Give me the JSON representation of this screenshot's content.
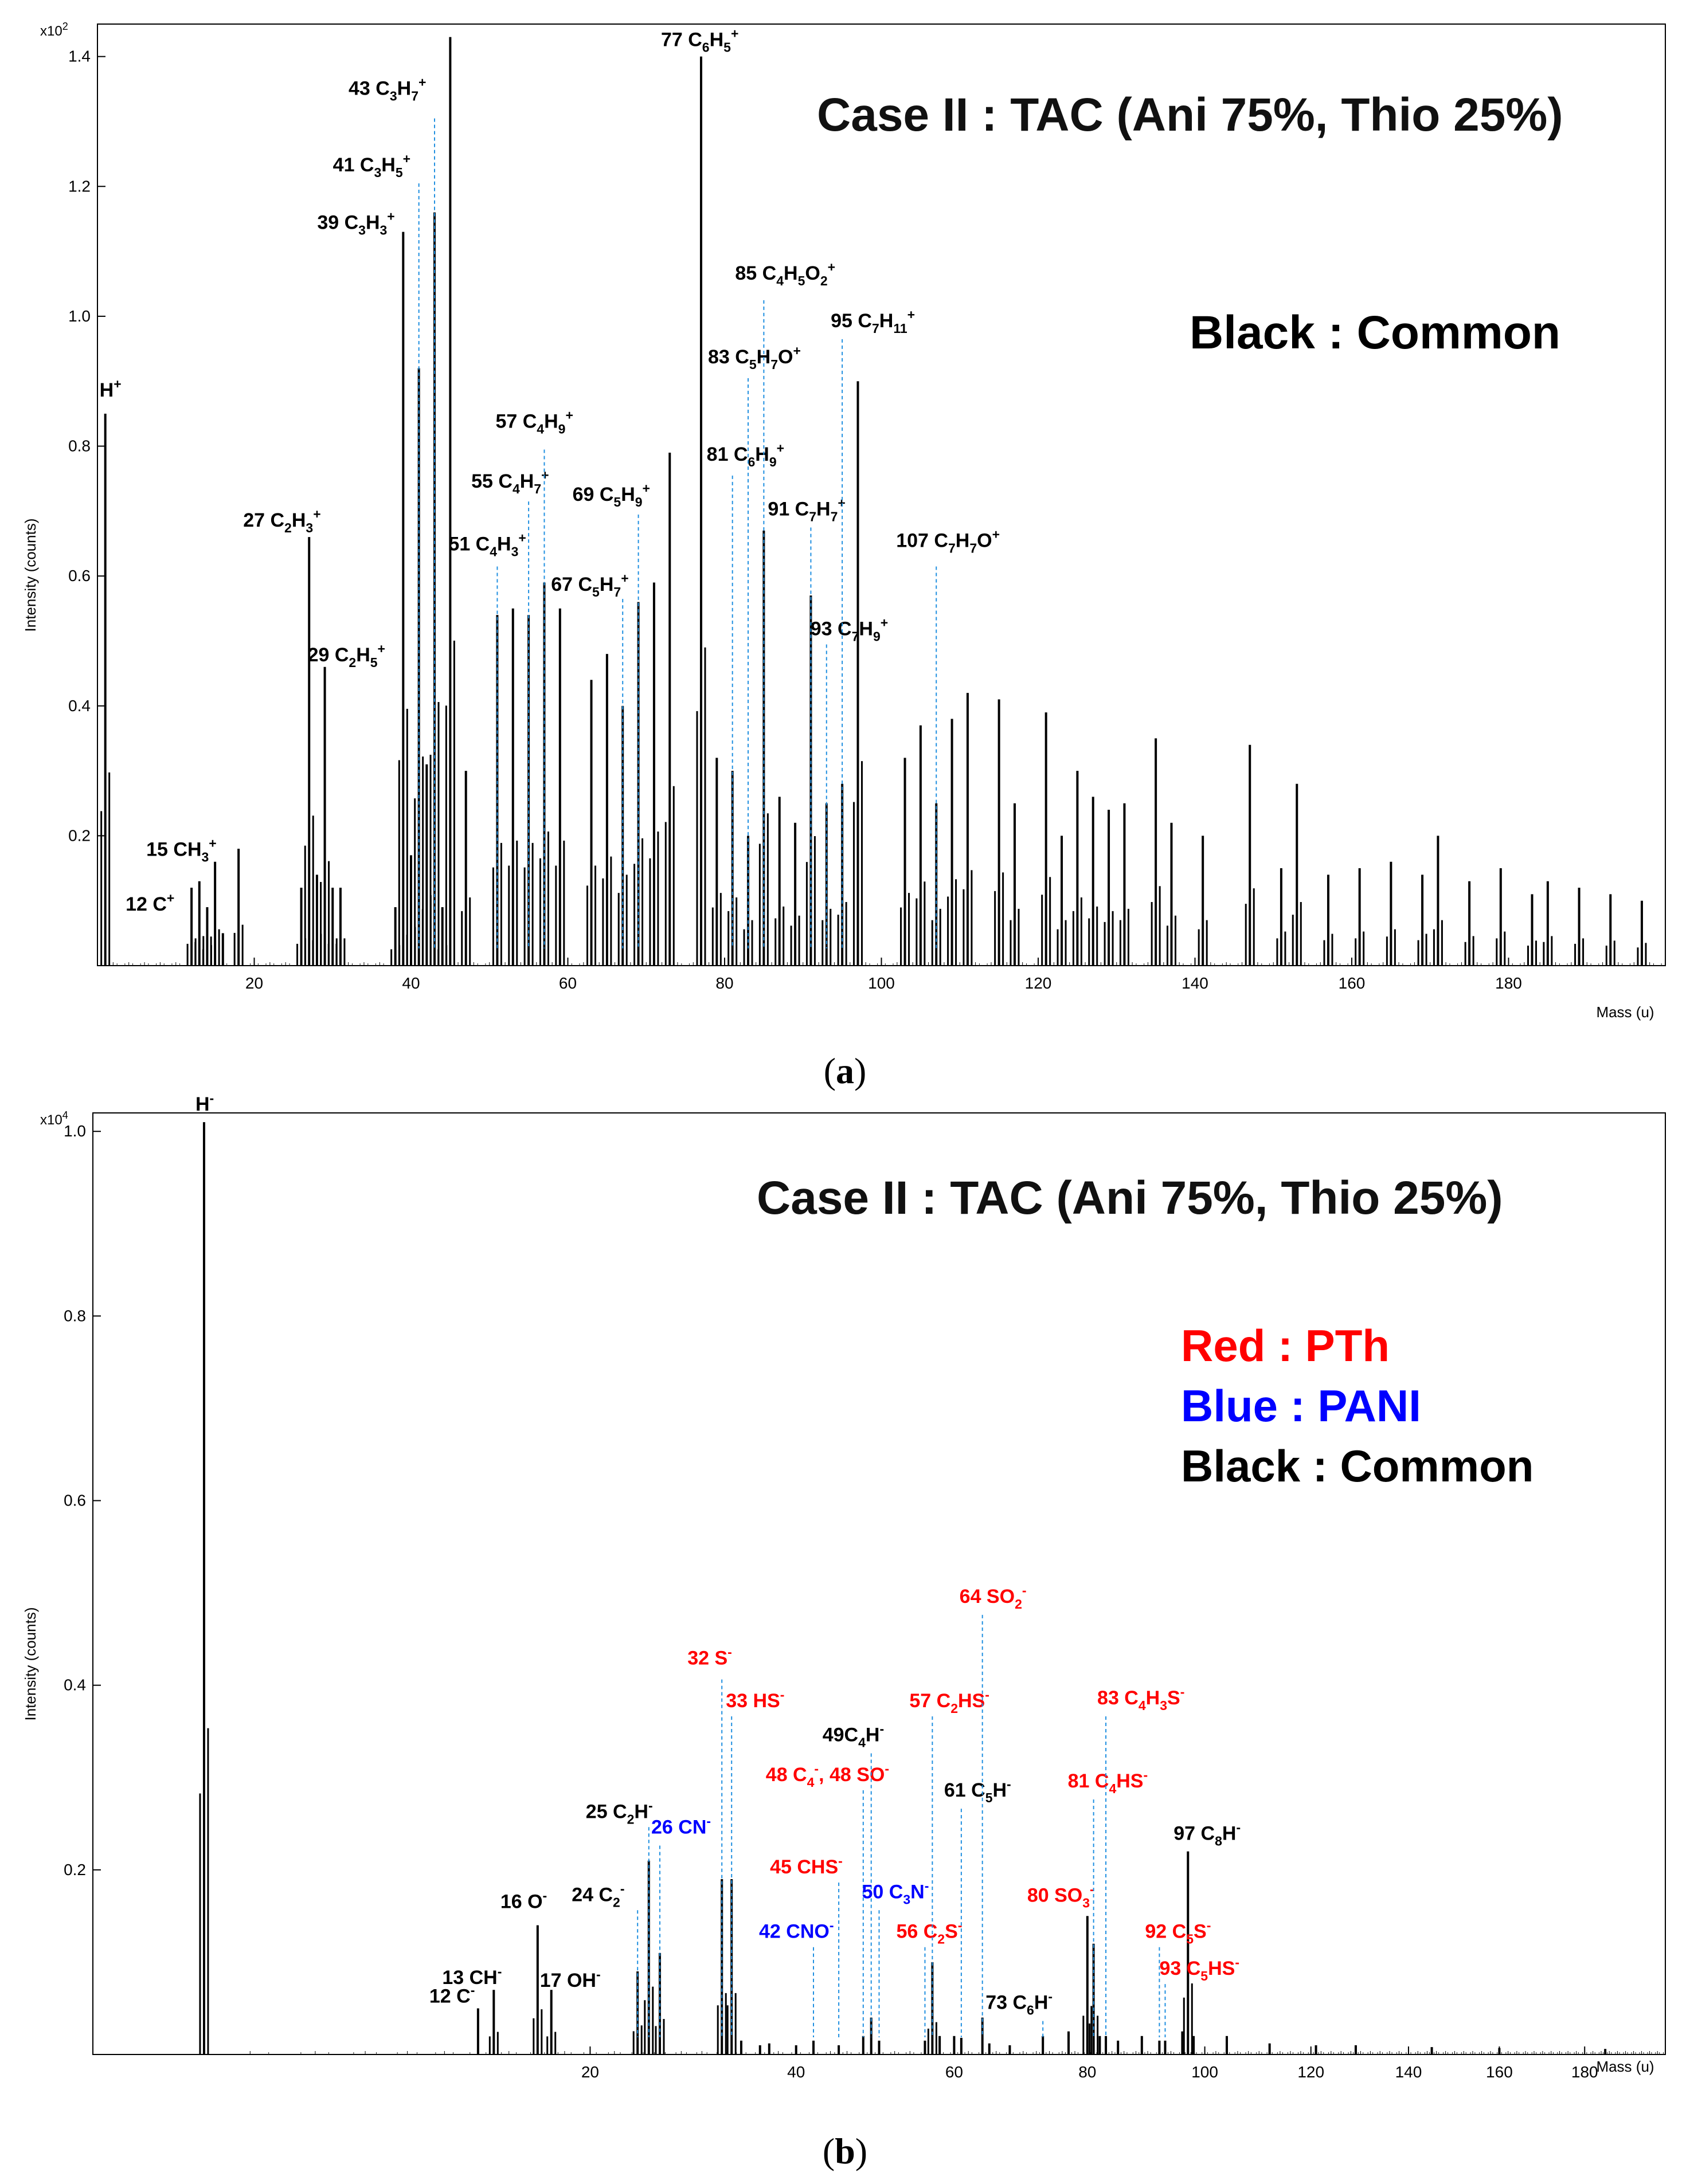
{
  "chart_data": [
    {
      "panel": "a",
      "type": "line",
      "title": "Case II : TAC (Ani 75%, Thio 25%)",
      "legend_groups": [
        {
          "label": "Black : Common",
          "color": "#000000"
        }
      ],
      "xlabel": "Mass (u)",
      "ylabel": "Intensity (counts)",
      "yscale_label": "x10",
      "yscale_exp": "2",
      "xlim": [
        0,
        200
      ],
      "ylim": [
        0,
        1.45
      ],
      "xticks": [
        "20",
        "40",
        "60",
        "80",
        "100",
        "120",
        "140",
        "160",
        "180"
      ],
      "yticks": [
        "0.2",
        "0.4",
        "0.6",
        "0.8",
        "1.0",
        "1.2",
        "1.4"
      ],
      "caption": "a",
      "peaks": [
        {
          "x": 1,
          "y": 0.85
        },
        {
          "x": 12,
          "y": 0.12
        },
        {
          "x": 13,
          "y": 0.13
        },
        {
          "x": 14,
          "y": 0.09
        },
        {
          "x": 15,
          "y": 0.16
        },
        {
          "x": 16,
          "y": 0.05
        },
        {
          "x": 18,
          "y": 0.18
        },
        {
          "x": 26,
          "y": 0.12
        },
        {
          "x": 27,
          "y": 0.66
        },
        {
          "x": 28,
          "y": 0.14
        },
        {
          "x": 29,
          "y": 0.46
        },
        {
          "x": 30,
          "y": 0.12
        },
        {
          "x": 31,
          "y": 0.12
        },
        {
          "x": 38,
          "y": 0.09
        },
        {
          "x": 39,
          "y": 1.13
        },
        {
          "x": 40,
          "y": 0.17
        },
        {
          "x": 41,
          "y": 0.92
        },
        {
          "x": 42,
          "y": 0.31
        },
        {
          "x": 43,
          "y": 1.16
        },
        {
          "x": 44,
          "y": 0.09
        },
        {
          "x": 45,
          "y": 1.43
        },
        {
          "x": 47,
          "y": 0.3
        },
        {
          "x": 51,
          "y": 0.54
        },
        {
          "x": 53,
          "y": 0.55
        },
        {
          "x": 55,
          "y": 0.54
        },
        {
          "x": 57,
          "y": 0.59
        },
        {
          "x": 59,
          "y": 0.55
        },
        {
          "x": 63,
          "y": 0.44
        },
        {
          "x": 65,
          "y": 0.48
        },
        {
          "x": 67,
          "y": 0.4
        },
        {
          "x": 69,
          "y": 0.56
        },
        {
          "x": 71,
          "y": 0.59
        },
        {
          "x": 73,
          "y": 0.79
        },
        {
          "x": 77,
          "y": 1.4
        },
        {
          "x": 79,
          "y": 0.32
        },
        {
          "x": 81,
          "y": 0.3
        },
        {
          "x": 83,
          "y": 0.2
        },
        {
          "x": 85,
          "y": 0.67
        },
        {
          "x": 87,
          "y": 0.26
        },
        {
          "x": 89,
          "y": 0.22
        },
        {
          "x": 91,
          "y": 0.57
        },
        {
          "x": 93,
          "y": 0.25
        },
        {
          "x": 95,
          "y": 0.28
        },
        {
          "x": 97,
          "y": 0.9
        },
        {
          "x": 103,
          "y": 0.32
        },
        {
          "x": 105,
          "y": 0.37
        },
        {
          "x": 107,
          "y": 0.25
        },
        {
          "x": 109,
          "y": 0.38
        },
        {
          "x": 111,
          "y": 0.42
        },
        {
          "x": 115,
          "y": 0.41
        },
        {
          "x": 117,
          "y": 0.25
        },
        {
          "x": 121,
          "y": 0.39
        },
        {
          "x": 123,
          "y": 0.2
        },
        {
          "x": 125,
          "y": 0.3
        },
        {
          "x": 127,
          "y": 0.26
        },
        {
          "x": 129,
          "y": 0.24
        },
        {
          "x": 131,
          "y": 0.25
        },
        {
          "x": 135,
          "y": 0.35
        },
        {
          "x": 137,
          "y": 0.22
        },
        {
          "x": 141,
          "y": 0.2
        },
        {
          "x": 147,
          "y": 0.34
        },
        {
          "x": 151,
          "y": 0.15
        },
        {
          "x": 153,
          "y": 0.28
        },
        {
          "x": 157,
          "y": 0.14
        },
        {
          "x": 161,
          "y": 0.15
        },
        {
          "x": 165,
          "y": 0.16
        },
        {
          "x": 169,
          "y": 0.14
        },
        {
          "x": 171,
          "y": 0.2
        },
        {
          "x": 175,
          "y": 0.13
        },
        {
          "x": 179,
          "y": 0.15
        },
        {
          "x": 183,
          "y": 0.11
        },
        {
          "x": 185,
          "y": 0.13
        },
        {
          "x": 189,
          "y": 0.12
        },
        {
          "x": 193,
          "y": 0.11
        },
        {
          "x": 197,
          "y": 0.1
        }
      ],
      "annotations": [
        {
          "x": 1,
          "y": 0.85,
          "label": "H",
          "sup": "+",
          "color": "#000000",
          "leader": false
        },
        {
          "x": 12,
          "y": 0.12,
          "label": "12 C",
          "sup": "+",
          "color": "#000000",
          "leader": false
        },
        {
          "x": 15,
          "y": 0.16,
          "label": "15 CH",
          "sub": "3",
          "sup": "+",
          "color": "#000000",
          "leader": false
        },
        {
          "x": 27,
          "y": 0.66,
          "label": "27 C",
          "sub": "2",
          "mid": "H",
          "sub2": "3",
          "sup": "+",
          "color": "#000000",
          "leader": false
        },
        {
          "x": 29,
          "y": 0.46,
          "label": "29 C",
          "sub": "2",
          "mid": "H",
          "sub2": "5",
          "sup": "+",
          "color": "#000000",
          "leader": false
        },
        {
          "x": 39,
          "y": 1.13,
          "label": "39 C",
          "sub": "3",
          "mid": "H",
          "sub2": "3",
          "sup": "+",
          "color": "#000000",
          "leader": false
        },
        {
          "x": 41,
          "y": 1.21,
          "label": "41 C",
          "sub": "3",
          "mid": "H",
          "sub2": "5",
          "sup": "+",
          "color": "#000000",
          "leader": true
        },
        {
          "x": 43,
          "y": 1.31,
          "label": "43 C",
          "sub": "3",
          "mid": "H",
          "sub2": "7",
          "sup": "+",
          "color": "#000000",
          "leader": true
        },
        {
          "x": 51,
          "y": 0.62,
          "label": "51 C",
          "sub": "4",
          "mid": "H",
          "sub2": "3",
          "sup": "+",
          "color": "#000000",
          "leader": true
        },
        {
          "x": 55,
          "y": 0.72,
          "label": "55 C",
          "sub": "4",
          "mid": "H",
          "sub2": "7",
          "sup": "+",
          "color": "#000000",
          "leader": true
        },
        {
          "x": 57,
          "y": 0.8,
          "label": "57 C",
          "sub": "4",
          "mid": "H",
          "sub2": "9",
          "sup": "+",
          "color": "#000000",
          "leader": true
        },
        {
          "x": 67,
          "y": 0.57,
          "label": "67 C",
          "sub": "5",
          "mid": "H",
          "sub2": "7",
          "sup": "+",
          "color": "#000000",
          "leader": true
        },
        {
          "x": 69,
          "y": 0.7,
          "label": "69 C",
          "sub": "5",
          "mid": "H",
          "sub2": "9",
          "sup": "+",
          "color": "#000000",
          "leader": true
        },
        {
          "x": 77,
          "y": 1.4,
          "label": "77 C",
          "sub": "6",
          "mid": "H",
          "sub2": "5",
          "sup": "+",
          "color": "#000000",
          "leader": false
        },
        {
          "x": 81,
          "y": 0.76,
          "label": "81 C",
          "sub": "6",
          "mid": "H",
          "sub2": "9",
          "sup": "+",
          "color": "#000000",
          "leader": true
        },
        {
          "x": 83,
          "y": 0.91,
          "label": "83 C",
          "sub": "5",
          "mid": "H",
          "sub2": "7",
          "tail": "O",
          "sup": "+",
          "color": "#000000",
          "leader": true
        },
        {
          "x": 85,
          "y": 1.03,
          "label": "85 C",
          "sub": "4",
          "mid": "H",
          "sub2": "5",
          "tail": "O",
          "sub3": "2",
          "sup": "+",
          "color": "#000000",
          "leader": true
        },
        {
          "x": 91,
          "y": 0.68,
          "label": "91 C",
          "sub": "7",
          "mid": "H",
          "sub2": "7",
          "sup": "+",
          "color": "#000000",
          "leader": true
        },
        {
          "x": 93,
          "y": 0.5,
          "label": "93 C",
          "sub": "7",
          "mid": "H",
          "sub2": "9",
          "sup": "+",
          "color": "#000000",
          "leader": true
        },
        {
          "x": 95,
          "y": 0.97,
          "label": "95 C",
          "sub": "7",
          "mid": "H",
          "sub2": "11",
          "sup": "+",
          "color": "#000000",
          "leader": true
        },
        {
          "x": 107,
          "y": 0.62,
          "label": "107 C",
          "sub": "7",
          "mid": "H",
          "sub2": "7",
          "tail": "O",
          "sup": "+",
          "color": "#000000",
          "leader": true
        }
      ]
    },
    {
      "panel": "b",
      "type": "line",
      "title": "Case II : TAC (Ani 75%, Thio 25%)",
      "legend_groups": [
        {
          "label": "Red : PTh",
          "color": "#ff0000"
        },
        {
          "label": "Blue : PANI",
          "color": "#0000ff"
        },
        {
          "label": "Black : Common",
          "color": "#000000"
        }
      ],
      "xlabel": "Mass (u)",
      "ylabel": "Intensity (counts)",
      "yscale_label": "x10",
      "yscale_exp": "4",
      "xscale": "sqrt",
      "xlim": [
        0,
        200
      ],
      "ylim": [
        0,
        1.02
      ],
      "xticks": [
        "20",
        "40",
        "60",
        "80",
        "100",
        "120",
        "140",
        "160",
        "180"
      ],
      "yticks": [
        "0.2",
        "0.4",
        "0.6",
        "0.8",
        "1.0"
      ],
      "caption": "b",
      "peaks": [
        {
          "x": 1,
          "y": 1.01
        },
        {
          "x": 12,
          "y": 0.05
        },
        {
          "x": 13,
          "y": 0.07
        },
        {
          "x": 16,
          "y": 0.14
        },
        {
          "x": 17,
          "y": 0.07
        },
        {
          "x": 24,
          "y": 0.09
        },
        {
          "x": 25,
          "y": 0.21
        },
        {
          "x": 26,
          "y": 0.11
        },
        {
          "x": 32,
          "y": 0.19
        },
        {
          "x": 33,
          "y": 0.19
        },
        {
          "x": 34,
          "y": 0.015
        },
        {
          "x": 36,
          "y": 0.01
        },
        {
          "x": 37,
          "y": 0.012
        },
        {
          "x": 40,
          "y": 0.01
        },
        {
          "x": 42,
          "y": 0.015
        },
        {
          "x": 45,
          "y": 0.01
        },
        {
          "x": 48,
          "y": 0.02
        },
        {
          "x": 49,
          "y": 0.04
        },
        {
          "x": 50,
          "y": 0.015
        },
        {
          "x": 56,
          "y": 0.015
        },
        {
          "x": 57,
          "y": 0.1
        },
        {
          "x": 58,
          "y": 0.02
        },
        {
          "x": 60,
          "y": 0.02
        },
        {
          "x": 61,
          "y": 0.018
        },
        {
          "x": 64,
          "y": 0.04
        },
        {
          "x": 65,
          "y": 0.012
        },
        {
          "x": 68,
          "y": 0.01
        },
        {
          "x": 73,
          "y": 0.02
        },
        {
          "x": 77,
          "y": 0.025
        },
        {
          "x": 80,
          "y": 0.15
        },
        {
          "x": 81,
          "y": 0.12
        },
        {
          "x": 82,
          "y": 0.02
        },
        {
          "x": 83,
          "y": 0.02
        },
        {
          "x": 85,
          "y": 0.015
        },
        {
          "x": 89,
          "y": 0.02
        },
        {
          "x": 92,
          "y": 0.015
        },
        {
          "x": 93,
          "y": 0.015
        },
        {
          "x": 96,
          "y": 0.025
        },
        {
          "x": 97,
          "y": 0.22
        },
        {
          "x": 98,
          "y": 0.02
        },
        {
          "x": 104,
          "y": 0.02
        },
        {
          "x": 112,
          "y": 0.012
        },
        {
          "x": 121,
          "y": 0.01
        },
        {
          "x": 129,
          "y": 0.01
        },
        {
          "x": 145,
          "y": 0.008
        },
        {
          "x": 160,
          "y": 0.007
        },
        {
          "x": 185,
          "y": 0.006
        }
      ],
      "annotations": [
        {
          "x": 1,
          "y": 1.01,
          "label": "H",
          "sup": "-",
          "color": "#000000",
          "leader": false
        },
        {
          "x": 12,
          "y": 0.05,
          "label": "12 C",
          "sup": "-",
          "color": "#000000",
          "leader": false
        },
        {
          "x": 13,
          "y": 0.07,
          "label": "13 CH",
          "sup": "-",
          "color": "#000000",
          "leader": false
        },
        {
          "x": 16,
          "y": 0.14,
          "label": "16 O",
          "sup": "-",
          "color": "#000000",
          "leader": false
        },
        {
          "x": 17,
          "y": 0.07,
          "label": "17 OH",
          "sup": "-",
          "color": "#000000",
          "leader": false
        },
        {
          "x": 24,
          "y": 0.16,
          "label": "24 C",
          "sub": "2",
          "sup": "-",
          "color": "#000000",
          "leader": true
        },
        {
          "x": 25,
          "y": 0.25,
          "label": "25 C",
          "sub": "2",
          "mid": "H",
          "sup": "-",
          "color": "#000000",
          "leader": true
        },
        {
          "x": 26,
          "y": 0.23,
          "label": "26 CN",
          "sup": "-",
          "color": "#0000ff",
          "leader": true
        },
        {
          "x": 32,
          "y": 0.41,
          "label": "32 S",
          "sup": "-",
          "color": "#ff0000",
          "leader": true
        },
        {
          "x": 33,
          "y": 0.37,
          "label": "33 HS",
          "sup": "-",
          "color": "#ff0000",
          "leader": true
        },
        {
          "x": 42,
          "y": 0.12,
          "label": "42 CNO",
          "sup": "-",
          "color": "#0000ff",
          "leader": true
        },
        {
          "x": 45,
          "y": 0.19,
          "label": "45 CHS",
          "sup": "-",
          "color": "#ff0000",
          "leader": true
        },
        {
          "x": 48,
          "y": 0.29,
          "label": "48 C",
          "sub": "4",
          "sup": "-",
          "tail": ", 48 SO",
          "sup2": "-",
          "color": "#ff0000",
          "leader": true
        },
        {
          "x": 49,
          "y": 0.33,
          "label": "49C",
          "sub": "4",
          "mid": "H",
          "sup": "-",
          "color": "#000000",
          "leader": true
        },
        {
          "x": 50,
          "y": 0.16,
          "label": "50 C",
          "sub": "3",
          "mid": "N",
          "sup": "-",
          "color": "#0000ff",
          "leader": true
        },
        {
          "x": 56,
          "y": 0.12,
          "label": "56 C",
          "sub": "2",
          "mid": "S",
          "sup": "-",
          "color": "#ff0000",
          "leader": true
        },
        {
          "x": 57,
          "y": 0.37,
          "label": "57 C",
          "sub": "2",
          "mid": "HS",
          "sup": "-",
          "color": "#ff0000",
          "leader": true
        },
        {
          "x": 61,
          "y": 0.27,
          "label": "61 C",
          "sub": "5",
          "mid": "H",
          "sup": "-",
          "color": "#000000",
          "leader": true
        },
        {
          "x": 64,
          "y": 0.48,
          "label": "64 SO",
          "sub": "2",
          "sup": "-",
          "color": "#ff0000",
          "leader": true
        },
        {
          "x": 73,
          "y": 0.04,
          "label": "73 C",
          "sub": "6",
          "mid": "H",
          "sup": "-",
          "color": "#000000",
          "leader": true
        },
        {
          "x": 80,
          "y": 0.15,
          "label": "80 SO",
          "sub": "3",
          "sup": "-",
          "color": "#ff0000",
          "leader": false
        },
        {
          "x": 81,
          "y": 0.28,
          "label": "81 C",
          "sub": "4",
          "mid": "HS",
          "sup": "-",
          "color": "#ff0000",
          "leader": true
        },
        {
          "x": 83,
          "y": 0.37,
          "label": "83 C",
          "sub": "4",
          "mid": "H",
          "sub2": "3",
          "tail": "S",
          "sup": "-",
          "color": "#ff0000",
          "leader": true
        },
        {
          "x": 92,
          "y": 0.12,
          "label": "92 C",
          "sub": "5",
          "mid": "S",
          "sup": "-",
          "color": "#ff0000",
          "leader": true
        },
        {
          "x": 93,
          "y": 0.08,
          "label": "93 C",
          "sub": "5",
          "mid": "HS",
          "sup": "-",
          "color": "#ff0000",
          "leader": true
        },
        {
          "x": 97,
          "y": 0.22,
          "label": "97 C",
          "sub": "8",
          "mid": "H",
          "sup": "-",
          "color": "#000000",
          "leader": false
        }
      ]
    }
  ]
}
